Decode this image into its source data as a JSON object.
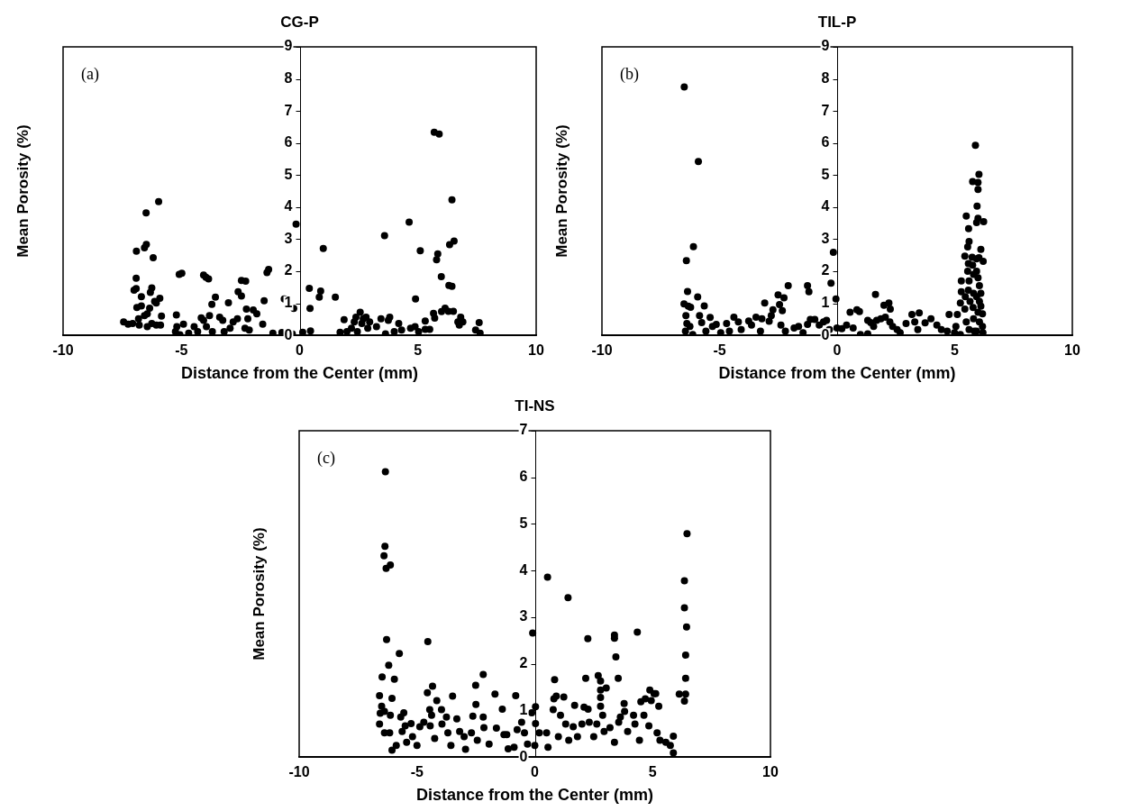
{
  "chart_data": [
    {
      "type": "scatter",
      "title": "CG-P",
      "xlabel": "Distance from the Center (mm)",
      "ylabel": "Mean Porosity (%)",
      "annotations": [
        "(a)"
      ],
      "xlim": [
        -10,
        10
      ],
      "xticks": [
        -10,
        -5,
        0,
        5,
        10
      ],
      "ylim": [
        0,
        9
      ],
      "yticks": [
        0,
        1,
        2,
        3,
        4,
        5,
        6,
        7,
        8,
        9
      ],
      "grid": false,
      "marker": "circle",
      "color": "#000000",
      "x": [
        -7.44,
        -7.25,
        -7.06,
        -6.9,
        -6.91,
        -7.0,
        -6.91,
        -6.88,
        -6.81,
        -6.78,
        -6.69,
        -6.69,
        -6.56,
        -6.48,
        -6.49,
        -6.56,
        -6.44,
        -6.44,
        -6.34,
        -6.31,
        -6.25,
        -6.19,
        -6.25,
        -6.13,
        -6.06,
        -5.96,
        -5.91,
        -5.84,
        -5.88,
        -6.06,
        -5.21,
        -5.19,
        -5.25,
        -5.09,
        -4.98,
        -5.06,
        -4.91,
        -4.69,
        -4.46,
        -4.31,
        -4.16,
        -4.06,
        -3.96,
        -3.85,
        -4.06,
        -3.94,
        -3.81,
        -3.71,
        -3.56,
        -3.69,
        -3.38,
        -3.25,
        -3.01,
        -3.19,
        -2.94,
        -2.81,
        -2.63,
        -2.6,
        -2.46,
        -2.46,
        -2.28,
        -2.25,
        -2.19,
        -2.31,
        -2.13,
        -1.96,
        -1.81,
        -1.56,
        -1.5,
        -1.38,
        -1.31,
        -1.13,
        -0.75,
        -0.65,
        -0.31,
        -0.25,
        -0.15,
        0.13,
        0.41,
        0.44,
        0.46,
        0.83,
        0.89,
        1.0,
        1.51,
        1.71,
        1.88,
        2.0,
        2.19,
        2.31,
        2.38,
        2.44,
        2.56,
        2.63,
        2.69,
        2.81,
        2.88,
        2.96,
        3.25,
        3.44,
        3.59,
        3.63,
        3.75,
        3.81,
        4.0,
        4.19,
        4.31,
        4.63,
        4.69,
        4.9,
        4.88,
        5.03,
        5.1,
        5.31,
        5.31,
        5.5,
        5.66,
        5.69,
        5.71,
        5.79,
        5.84,
        5.9,
        5.99,
        6.0,
        6.15,
        6.29,
        6.34,
        6.31,
        6.44,
        6.44,
        6.53,
        6.5,
        6.69,
        6.75,
        6.81,
        6.9,
        7.44,
        7.59,
        7.63
      ],
      "values": [
        0.42,
        0.35,
        0.37,
        2.63,
        1.78,
        1.41,
        1.46,
        0.87,
        0.52,
        0.32,
        1.21,
        0.92,
        2.73,
        2.84,
        3.82,
        0.62,
        0.27,
        0.67,
        0.85,
        1.34,
        1.48,
        2.42,
        0.37,
        1.06,
        1.01,
        4.17,
        1.16,
        0.6,
        0.32,
        0.32,
        0.64,
        0.27,
        0.12,
        1.9,
        1.94,
        0.02,
        0.35,
        0.07,
        0.27,
        0.12,
        0.55,
        1.88,
        1.81,
        1.76,
        0.47,
        0.27,
        0.62,
        0.97,
        1.19,
        0.12,
        0.57,
        0.47,
        1.02,
        0.12,
        0.22,
        0.42,
        0.52,
        1.36,
        1.23,
        1.71,
        1.69,
        0.82,
        0.52,
        0.22,
        0.17,
        0.79,
        0.67,
        0.35,
        1.08,
        1.96,
        2.06,
        0.07,
        0.09,
        1.14,
        0.05,
        0.84,
        3.47,
        0.1,
        1.47,
        0.84,
        0.14,
        1.19,
        1.38,
        2.71,
        1.19,
        0.1,
        0.49,
        0.12,
        0.22,
        0.42,
        0.57,
        0.12,
        0.72,
        0.37,
        0.52,
        0.57,
        0.22,
        0.42,
        0.27,
        0.52,
        3.11,
        0.05,
        0.47,
        0.57,
        0.12,
        0.37,
        0.17,
        3.53,
        0.22,
        1.14,
        0.27,
        0.12,
        2.64,
        0.45,
        0.19,
        0.19,
        0.69,
        6.34,
        0.54,
        2.36,
        2.54,
        6.28,
        1.83,
        0.74,
        0.85,
        0.75,
        2.83,
        1.56,
        4.23,
        1.53,
        2.94,
        0.75,
        0.42,
        0.32,
        0.57,
        0.42,
        0.17,
        0.4,
        0.07
      ]
    },
    {
      "type": "scatter",
      "title": "TIL-P",
      "xlabel": "Distance from the Center (mm)",
      "ylabel": "Mean Porosity (%)",
      "annotations": [
        "(b)"
      ],
      "xlim": [
        -10,
        10
      ],
      "xticks": [
        -10,
        -5,
        0,
        5,
        10
      ],
      "ylim": [
        0,
        9
      ],
      "yticks": [
        0,
        1,
        2,
        3,
        4,
        5,
        6,
        7,
        8,
        9
      ],
      "grid": false,
      "marker": "circle",
      "color": "#000000",
      "x": [
        -6.5,
        -5.9,
        -6.11,
        -6.41,
        -6.36,
        -6.51,
        -6.33,
        -6.23,
        -6.43,
        -6.39,
        -6.45,
        -6.26,
        -6.14,
        -5.93,
        -5.85,
        -5.76,
        -5.65,
        -5.58,
        -5.4,
        -5.3,
        -5.14,
        -4.95,
        -4.7,
        -4.58,
        -4.39,
        -4.2,
        -4.08,
        -3.76,
        -3.64,
        -3.45,
        -3.26,
        -3.2,
        -3.08,
        -2.89,
        -2.8,
        -2.73,
        -2.51,
        -2.45,
        -2.39,
        -2.33,
        -2.26,
        -2.08,
        -2.2,
        -1.83,
        -1.64,
        -1.45,
        -1.26,
        -1.2,
        -1.26,
        -1.14,
        -0.95,
        -0.76,
        -0.58,
        -0.45,
        -0.33,
        -0.26,
        -0.16,
        -0.05,
        -0.01,
        0.2,
        0.4,
        0.55,
        0.68,
        0.84,
        0.95,
        0.99,
        1.3,
        1.3,
        1.43,
        1.55,
        1.63,
        1.68,
        1.86,
        1.99,
        2.05,
        2.2,
        2.26,
        2.24,
        2.36,
        2.55,
        2.68,
        2.93,
        3.18,
        3.3,
        3.49,
        3.43,
        3.74,
        3.99,
        4.24,
        4.43,
        4.68,
        4.76,
        4.99,
        5.05,
        5.11,
        5.24,
        5.28,
        5.28,
        5.24,
        5.43,
        5.49,
        5.43,
        5.45,
        5.49,
        5.59,
        5.61,
        5.55,
        5.58,
        5.55,
        5.61,
        5.58,
        5.65,
        5.61,
        5.74,
        5.76,
        5.8,
        5.8,
        5.78,
        5.8,
        5.83,
        5.88,
        5.76,
        5.99,
        6.03,
        5.99,
        5.95,
        5.99,
        5.93,
        6.23,
        6.03,
        6.11,
        6.21,
        5.93,
        5.99,
        6.05,
        6.11,
        6.05,
        6.11,
        5.99,
        6.18,
        6.05,
        6.18,
        6.2,
        5.93,
        5.93,
        5.93
      ],
      "values": [
        7.75,
        5.42,
        2.77,
        2.33,
        1.37,
        0.98,
        0.91,
        0.88,
        0.62,
        0.37,
        0.13,
        0.28,
        0.03,
        1.2,
        0.62,
        0.4,
        0.92,
        0.13,
        0.56,
        0.28,
        0.34,
        0.08,
        0.37,
        0.13,
        0.57,
        0.42,
        0.18,
        0.45,
        0.32,
        0.57,
        0.13,
        0.52,
        1.01,
        0.44,
        0.62,
        0.8,
        1.26,
        0.96,
        0.32,
        0.77,
        1.17,
        1.55,
        0.13,
        0.23,
        0.28,
        0.08,
        1.55,
        1.36,
        0.34,
        0.5,
        0.5,
        0.32,
        0.42,
        0.47,
        0.18,
        1.63,
        2.59,
        1.14,
        0.23,
        0.21,
        0.32,
        0.72,
        0.23,
        0.8,
        0.74,
        0.03,
        0.05,
        0.47,
        0.4,
        0.28,
        1.28,
        0.47,
        0.52,
        0.94,
        0.57,
        1.01,
        0.82,
        0.42,
        0.28,
        0.18,
        0.08,
        0.37,
        0.65,
        0.42,
        0.7,
        0.18,
        0.39,
        0.52,
        0.32,
        0.18,
        0.13,
        0.65,
        0.08,
        0.28,
        0.65,
        1.01,
        1.7,
        1.36,
        0.03,
        2.47,
        3.72,
        0.82,
        1.21,
        0.42,
        3.33,
        2.93,
        2.76,
        2.24,
        2.0,
        1.7,
        1.41,
        1.06,
        0.18,
        2.44,
        2.19,
        1.9,
        1.31,
        0.87,
        0.52,
        0.13,
        5.93,
        4.8,
        4.77,
        5.02,
        4.55,
        4.03,
        3.65,
        3.52,
        3.55,
        2.42,
        2.68,
        2.31,
        2.0,
        1.8,
        1.55,
        1.31,
        1.06,
        0.91,
        0.72,
        0.67,
        0.42,
        0.28,
        0.08,
        0.13,
        1.21,
        2.39
      ]
    },
    {
      "type": "scatter",
      "title": "TI-NS",
      "xlabel": "Distance from the Center (mm)",
      "ylabel": "Mean Porosity (%)",
      "annotations": [
        "(c)"
      ],
      "xlim": [
        -10,
        10
      ],
      "xticks": [
        -10,
        -5,
        0,
        5,
        10
      ],
      "ylim": [
        0,
        7
      ],
      "yticks": [
        0,
        1,
        2,
        3,
        4,
        5,
        6,
        7
      ],
      "grid": false,
      "marker": "circle",
      "color": "#000000",
      "x": [
        -6.34,
        -6.36,
        -6.4,
        -6.31,
        -6.13,
        -6.29,
        -5.75,
        -6.2,
        -6.48,
        -5.96,
        -6.59,
        -6.06,
        -6.5,
        -6.56,
        -6.38,
        -6.13,
        -6.59,
        -6.38,
        -6.16,
        -6.06,
        -5.88,
        -5.69,
        -5.56,
        -5.63,
        -5.5,
        -5.44,
        -5.25,
        -5.19,
        -5.0,
        -4.88,
        -4.71,
        -4.54,
        -4.56,
        -4.34,
        -4.46,
        -4.38,
        -4.44,
        -4.25,
        -4.16,
        -3.96,
        -3.94,
        -3.75,
        -3.69,
        -3.49,
        -3.56,
        -3.31,
        -3.19,
        -3.0,
        -2.94,
        -2.69,
        -2.63,
        -2.51,
        -2.5,
        -2.44,
        -2.19,
        -2.19,
        -2.16,
        -1.94,
        -1.69,
        -1.63,
        -1.38,
        -1.31,
        -1.19,
        -1.13,
        -0.88,
        -0.81,
        -0.75,
        -0.56,
        -0.44,
        -0.31,
        -0.13,
        -0.09,
        0,
        0.03,
        0.03,
        0.19,
        0.5,
        0.54,
        0.56,
        0.78,
        0.84,
        0.81,
        0.91,
        1.0,
        1.09,
        1.23,
        1.31,
        1.41,
        1.44,
        1.63,
        1.69,
        1.81,
        2.0,
        2.09,
        2.16,
        2.25,
        2.26,
        2.31,
        2.5,
        2.63,
        2.69,
        2.79,
        3.03,
        2.79,
        2.79,
        2.79,
        2.88,
        2.94,
        3.19,
        3.38,
        3.38,
        3.44,
        3.54,
        3.38,
        3.56,
        3.63,
        3.79,
        3.81,
        3.94,
        4.19,
        4.25,
        4.35,
        4.44,
        4.5,
        4.63,
        4.69,
        4.84,
        4.88,
        4.94,
        5.06,
        5.13,
        5.19,
        5.26,
        5.31,
        5.56,
        5.75,
        5.88,
        5.88,
        6.13,
        6.35,
        6.35,
        6.44,
        6.4,
        6.4,
        6.35,
        6.4,
        6.46
      ],
      "values": [
        6.12,
        4.52,
        4.32,
        4.05,
        4.12,
        2.52,
        2.22,
        1.97,
        1.72,
        1.67,
        1.32,
        1.26,
        1.09,
        0.94,
        0.98,
        0.9,
        0.71,
        0.52,
        0.52,
        0.15,
        0.25,
        0.86,
        0.95,
        0.55,
        0.67,
        0.32,
        0.72,
        0.44,
        0.25,
        0.65,
        0.75,
        2.48,
        1.38,
        1.52,
        1.02,
        0.9,
        0.67,
        0.4,
        1.21,
        1.02,
        0.71,
        0.86,
        0.52,
        1.31,
        0.25,
        0.82,
        0.55,
        0.44,
        0.17,
        0.52,
        0.88,
        1.54,
        1.13,
        0.36,
        1.77,
        0.86,
        0.63,
        0.28,
        1.35,
        0.62,
        1.03,
        0.48,
        0.48,
        0.18,
        0.21,
        1.32,
        0.59,
        0.75,
        0.52,
        0.28,
        0.95,
        2.66,
        0.25,
        1.08,
        0.72,
        0.52,
        0.52,
        3.86,
        0.21,
        1.02,
        1.66,
        1.25,
        1.31,
        0.44,
        0.9,
        1.29,
        0.71,
        3.42,
        0.36,
        0.65,
        1.11,
        0.44,
        0.71,
        1.07,
        1.69,
        2.54,
        1.03,
        0.75,
        0.44,
        0.71,
        1.75,
        1.63,
        1.48,
        1.44,
        1.28,
        1.09,
        0.9,
        0.55,
        0.63,
        2.62,
        2.55,
        2.15,
        1.69,
        0.32,
        0.75,
        0.86,
        1.15,
        0.98,
        0.55,
        0.9,
        0.71,
        2.68,
        0.36,
        1.19,
        0.9,
        1.25,
        0.67,
        1.44,
        1.21,
        1.36,
        1.36,
        0.52,
        1.09,
        0.36,
        0.32,
        0.25,
        0.45,
        0.09,
        1.35,
        3.78,
        3.2,
        2.79,
        2.19,
        1.69,
        1.2,
        1.35,
        4.79
      ]
    }
  ]
}
